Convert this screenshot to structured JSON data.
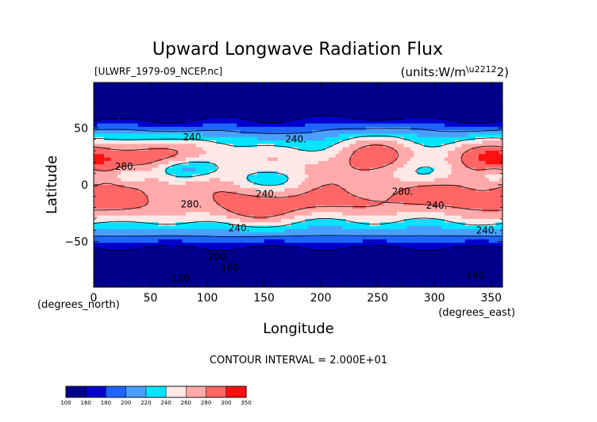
{
  "chart_data": {
    "type": "heatmap",
    "subtype": "filled-contour-map",
    "title": "Upward Longwave Radiation Flux",
    "file_label": "[ULWRF_1979-09_NCEP.nc]",
    "units_label": "(units:W/m^2)",
    "xlabel": "Longitude",
    "ylabel": "Latitude",
    "x_units_label": "(degrees_east)",
    "y_units_label": "(degrees_north)",
    "xlim": [
      0,
      360
    ],
    "ylim": [
      -90,
      90
    ],
    "x_ticks": [
      {
        "v": 0,
        "label": "0"
      },
      {
        "v": 50,
        "label": "50"
      },
      {
        "v": 100,
        "label": "100"
      },
      {
        "v": 150,
        "label": "150"
      },
      {
        "v": 200,
        "label": "200"
      },
      {
        "v": 250,
        "label": "250"
      },
      {
        "v": 300,
        "label": "300"
      },
      {
        "v": 350,
        "label": "350"
      }
    ],
    "y_ticks": [
      {
        "v": 50,
        "label": "50"
      },
      {
        "v": 0,
        "label": "0"
      },
      {
        "v": -50,
        "label": "−50"
      }
    ],
    "contour_interval_text": "CONTOUR INTERVAL = 2.000E+01",
    "contour_labels": [
      {
        "text": "240.",
        "lon": 88,
        "lat": 42
      },
      {
        "text": "240.",
        "lon": 178,
        "lat": 40
      },
      {
        "text": "280.",
        "lon": 28,
        "lat": 16
      },
      {
        "text": "240.",
        "lon": 152,
        "lat": -8
      },
      {
        "text": "280.",
        "lon": 86,
        "lat": -17
      },
      {
        "text": "240.",
        "lon": 128,
        "lat": -38
      },
      {
        "text": "280.",
        "lon": 272,
        "lat": -6
      },
      {
        "text": "240.",
        "lon": 302,
        "lat": -18
      },
      {
        "text": "240.",
        "lon": 346,
        "lat": -40
      },
      {
        "text": "200.",
        "lon": 110,
        "lat": -63
      },
      {
        "text": "160",
        "lon": 120,
        "lat": -73
      },
      {
        "text": "120.",
        "lon": 78,
        "lat": -82
      },
      {
        "text": "160",
        "lon": 336,
        "lat": -80
      }
    ],
    "colorbar": {
      "levels": [
        "100",
        "160",
        "180",
        "200",
        "220",
        "240",
        "260",
        "280",
        "300",
        "350"
      ],
      "colors": [
        "#00008b",
        "#0000cd",
        "#1e64ff",
        "#4a9fff",
        "#00e5ff",
        "#ffe8e8",
        "#ffaaaa",
        "#ff6666",
        "#ff1010"
      ]
    },
    "grid": false,
    "legend": "bottom-left colorbar"
  }
}
